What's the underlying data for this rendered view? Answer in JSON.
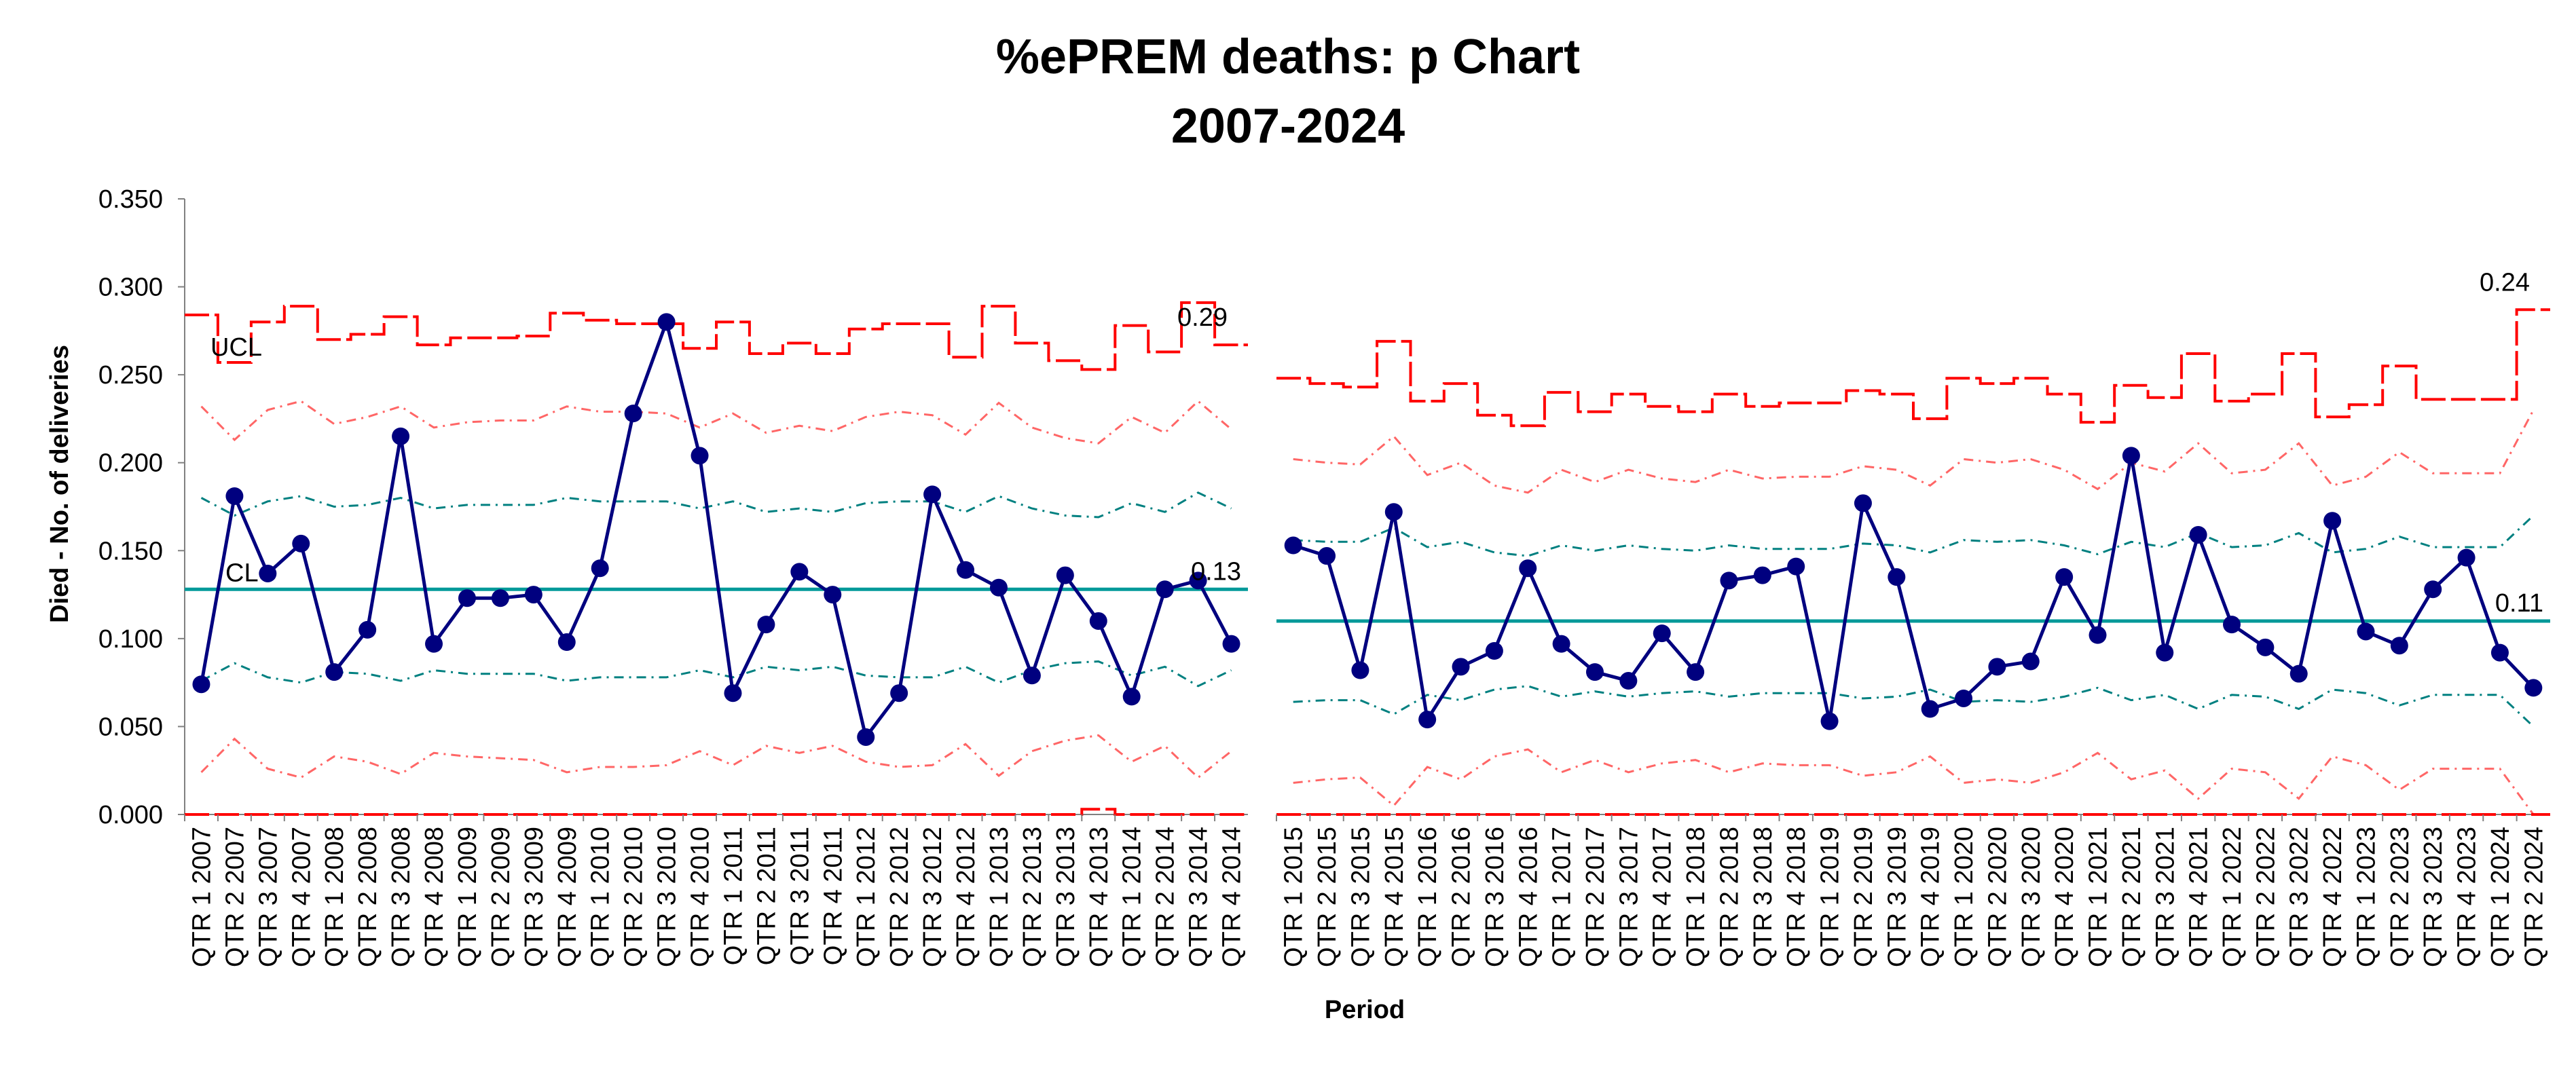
{
  "chart_data": {
    "type": "line",
    "title": "%ePREM deaths: p Chart",
    "subtitle": "2007-2024",
    "xlabel": "Period",
    "ylabel": "Died - No. of deliveries",
    "ylim": [
      0,
      0.35
    ],
    "yticks": [
      "0.000",
      "0.050",
      "0.100",
      "0.150",
      "0.200",
      "0.250",
      "0.300",
      "0.350"
    ],
    "grid": false,
    "legend": "none",
    "colors": {
      "series": "#00007F",
      "cl": "#009999",
      "ucl": "#FF0000",
      "sigma1": "#008080",
      "sigma2": "#FF6666"
    },
    "panels": [
      {
        "categories": [
          "QTR 1 2007",
          "QTR 2 2007",
          "QTR 3 2007",
          "QTR 4 2007",
          "QTR 1 2008",
          "QTR 2 2008",
          "QTR 3 2008",
          "QTR 4 2008",
          "QTR 1 2009",
          "QTR 2 2009",
          "QTR 3 2009",
          "QTR 4 2009",
          "QTR 1 2010",
          "QTR 2 2010",
          "QTR 3 2010",
          "QTR 4 2010",
          "QTR 1 2011",
          "QTR 2 2011",
          "QTR 3 2011",
          "QTR 4 2011",
          "QTR 1 2012",
          "QTR 2 2012",
          "QTR 3 2012",
          "QTR 4 2012",
          "QTR 1 2013",
          "QTR 2 2013",
          "QTR 3 2013",
          "QTR 4 2013",
          "QTR 1 2014",
          "QTR 2 2014",
          "QTR 3 2014",
          "QTR 4 2014"
        ],
        "values": [
          0.074,
          0.181,
          0.137,
          0.154,
          0.081,
          0.105,
          0.215,
          0.097,
          0.123,
          0.123,
          0.125,
          0.098,
          0.14,
          0.228,
          0.28,
          0.204,
          0.069,
          0.108,
          0.138,
          0.125,
          0.044,
          0.069,
          0.182,
          0.139,
          0.129,
          0.079,
          0.136,
          0.11,
          0.067,
          0.128,
          0.133,
          0.097
        ],
        "cl": 0.128,
        "ucl": [
          0.284,
          0.257,
          0.28,
          0.289,
          0.27,
          0.273,
          0.283,
          0.267,
          0.271,
          0.271,
          0.272,
          0.285,
          0.281,
          0.279,
          0.279,
          0.265,
          0.28,
          0.262,
          0.268,
          0.262,
          0.276,
          0.279,
          0.279,
          0.26,
          0.289,
          0.268,
          0.258,
          0.253,
          0.278,
          0.263,
          0.291,
          0.267
        ],
        "lcl": [
          0,
          0,
          0,
          0,
          0,
          0,
          0,
          0,
          0,
          0,
          0,
          0,
          0,
          0,
          0,
          0,
          0,
          0,
          0,
          0,
          0,
          0,
          0,
          0,
          0,
          0,
          0,
          0.003,
          0,
          0,
          0,
          0
        ],
        "upper_2sigma": [
          0.232,
          0.213,
          0.23,
          0.235,
          0.222,
          0.226,
          0.232,
          0.22,
          0.223,
          0.224,
          0.224,
          0.232,
          0.229,
          0.229,
          0.228,
          0.22,
          0.228,
          0.217,
          0.221,
          0.218,
          0.226,
          0.229,
          0.227,
          0.216,
          0.234,
          0.22,
          0.214,
          0.211,
          0.226,
          0.217,
          0.235,
          0.219
        ],
        "lower_2sigma": [
          0.024,
          0.043,
          0.026,
          0.021,
          0.033,
          0.03,
          0.023,
          0.035,
          0.033,
          0.032,
          0.031,
          0.024,
          0.027,
          0.027,
          0.028,
          0.036,
          0.028,
          0.039,
          0.035,
          0.039,
          0.03,
          0.027,
          0.028,
          0.04,
          0.022,
          0.036,
          0.042,
          0.045,
          0.03,
          0.039,
          0.021,
          0.036
        ],
        "upper_1sigma": [
          0.18,
          0.17,
          0.178,
          0.181,
          0.175,
          0.176,
          0.18,
          0.174,
          0.176,
          0.176,
          0.176,
          0.18,
          0.178,
          0.178,
          0.178,
          0.174,
          0.178,
          0.172,
          0.174,
          0.172,
          0.177,
          0.178,
          0.178,
          0.172,
          0.181,
          0.174,
          0.17,
          0.169,
          0.177,
          0.172,
          0.183,
          0.174
        ],
        "lower_1sigma": [
          0.076,
          0.086,
          0.078,
          0.075,
          0.081,
          0.08,
          0.076,
          0.082,
          0.08,
          0.08,
          0.08,
          0.076,
          0.078,
          0.078,
          0.078,
          0.082,
          0.078,
          0.084,
          0.082,
          0.084,
          0.079,
          0.078,
          0.078,
          0.084,
          0.075,
          0.082,
          0.086,
          0.087,
          0.079,
          0.084,
          0.073,
          0.082
        ],
        "labels": {
          "ucl_label": "UCL",
          "cl_label": "CL",
          "ucl_value": "0.29",
          "cl_value": "0.13"
        }
      },
      {
        "categories": [
          "QTR 1 2015",
          "QTR 2 2015",
          "QTR 3 2015",
          "QTR 4 2015",
          "QTR 1 2016",
          "QTR 2 2016",
          "QTR 3 2016",
          "QTR 4 2016",
          "QTR 1 2017",
          "QTR 2 2017",
          "QTR 3 2017",
          "QTR 4 2017",
          "QTR 1 2018",
          "QTR 2 2018",
          "QTR 3 2018",
          "QTR 4 2018",
          "QTR 1 2019",
          "QTR 2 2019",
          "QTR 3 2019",
          "QTR 4 2019",
          "QTR 1 2020",
          "QTR 2 2020",
          "QTR 3 2020",
          "QTR 4 2020",
          "QTR 1 2021",
          "QTR 2 2021",
          "QTR 3 2021",
          "QTR 4 2021",
          "QTR 1 2022",
          "QTR 2 2022",
          "QTR 3 2022",
          "QTR 4 2022",
          "QTR 1 2023",
          "QTR 2 2023",
          "QTR 3 2023",
          "QTR 4 2023",
          "QTR 1 2024",
          "QTR 2 2024"
        ],
        "values": [
          0.153,
          0.147,
          0.082,
          0.172,
          0.054,
          0.084,
          0.093,
          0.14,
          0.097,
          0.081,
          0.076,
          0.103,
          0.081,
          0.133,
          0.136,
          0.141,
          0.053,
          0.177,
          0.135,
          0.06,
          0.066,
          0.084,
          0.087,
          0.135,
          0.102,
          0.204,
          0.092,
          0.159,
          0.108,
          0.095,
          0.08,
          0.167,
          0.104,
          0.096,
          0.128,
          0.146,
          0.092,
          0.072
        ],
        "cl": 0.11,
        "ucl": [
          0.248,
          0.245,
          0.243,
          0.269,
          0.235,
          0.245,
          0.227,
          0.221,
          0.24,
          0.229,
          0.239,
          0.232,
          0.229,
          0.239,
          0.232,
          0.234,
          0.234,
          0.241,
          0.239,
          0.225,
          0.248,
          0.245,
          0.248,
          0.239,
          0.223,
          0.244,
          0.237,
          0.262,
          0.235,
          0.239,
          0.262,
          0.226,
          0.233,
          0.255,
          0.236,
          0.236,
          0.236,
          0.287
        ],
        "lcl": [
          0,
          0,
          0,
          0,
          0,
          0,
          0,
          0,
          0,
          0,
          0,
          0,
          0,
          0,
          0,
          0,
          0,
          0,
          0,
          0,
          0,
          0,
          0,
          0,
          0,
          0,
          0,
          0,
          0,
          0,
          0,
          0,
          0,
          0,
          0,
          0,
          0,
          0
        ],
        "upper_2sigma": [
          0.202,
          0.2,
          0.199,
          0.215,
          0.193,
          0.2,
          0.187,
          0.183,
          0.196,
          0.189,
          0.196,
          0.191,
          0.189,
          0.196,
          0.191,
          0.192,
          0.192,
          0.198,
          0.196,
          0.187,
          0.202,
          0.2,
          0.202,
          0.196,
          0.185,
          0.2,
          0.195,
          0.211,
          0.194,
          0.196,
          0.211,
          0.187,
          0.192,
          0.206,
          0.194,
          0.194,
          0.194,
          0.23
        ],
        "lower_2sigma": [
          0.018,
          0.02,
          0.021,
          0.005,
          0.027,
          0.02,
          0.033,
          0.037,
          0.024,
          0.031,
          0.024,
          0.029,
          0.031,
          0.024,
          0.029,
          0.028,
          0.028,
          0.022,
          0.024,
          0.033,
          0.018,
          0.02,
          0.018,
          0.024,
          0.035,
          0.02,
          0.025,
          0.009,
          0.026,
          0.024,
          0.009,
          0.033,
          0.028,
          0.014,
          0.026,
          0.026,
          0.026,
          0.0
        ],
        "upper_1sigma": [
          0.156,
          0.155,
          0.155,
          0.163,
          0.152,
          0.155,
          0.149,
          0.147,
          0.153,
          0.15,
          0.153,
          0.151,
          0.15,
          0.153,
          0.151,
          0.151,
          0.151,
          0.154,
          0.153,
          0.149,
          0.156,
          0.155,
          0.156,
          0.153,
          0.148,
          0.155,
          0.152,
          0.16,
          0.152,
          0.153,
          0.16,
          0.149,
          0.151,
          0.158,
          0.152,
          0.152,
          0.152,
          0.17
        ],
        "lower_1sigma": [
          0.064,
          0.065,
          0.065,
          0.057,
          0.068,
          0.065,
          0.071,
          0.073,
          0.067,
          0.07,
          0.067,
          0.069,
          0.07,
          0.067,
          0.069,
          0.069,
          0.069,
          0.066,
          0.067,
          0.071,
          0.064,
          0.065,
          0.064,
          0.067,
          0.072,
          0.065,
          0.068,
          0.06,
          0.068,
          0.067,
          0.06,
          0.071,
          0.069,
          0.062,
          0.068,
          0.068,
          0.068,
          0.05
        ],
        "labels": {
          "ucl_label": "",
          "cl_label": "",
          "ucl_value": "0.24",
          "cl_value": "0.11"
        }
      }
    ]
  }
}
